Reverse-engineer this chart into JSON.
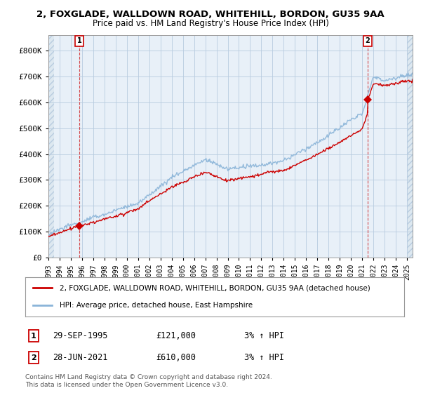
{
  "title_line1": "2, FOXGLADE, WALLDOWN ROAD, WHITEHILL, BORDON, GU35 9AA",
  "title_line2": "Price paid vs. HM Land Registry's House Price Index (HPI)",
  "xlim_start": 1993.0,
  "xlim_end": 2025.5,
  "ylim_min": 0,
  "ylim_max": 860000,
  "yticks": [
    0,
    100000,
    200000,
    300000,
    400000,
    500000,
    600000,
    700000,
    800000
  ],
  "ytick_labels": [
    "£0",
    "£100K",
    "£200K",
    "£300K",
    "£400K",
    "£500K",
    "£600K",
    "£700K",
    "£800K"
  ],
  "xticks": [
    1993,
    1994,
    1995,
    1996,
    1997,
    1998,
    1999,
    2000,
    2001,
    2002,
    2003,
    2004,
    2005,
    2006,
    2007,
    2008,
    2009,
    2010,
    2011,
    2012,
    2013,
    2014,
    2015,
    2016,
    2017,
    2018,
    2019,
    2020,
    2021,
    2022,
    2023,
    2024,
    2025
  ],
  "transaction1_x": 1995.75,
  "transaction1_y": 121000,
  "transaction1_label": "1",
  "transaction1_date": "29-SEP-1995",
  "transaction1_price": "£121,000",
  "transaction1_hpi": "3% ↑ HPI",
  "transaction2_x": 2021.5,
  "transaction2_y": 610000,
  "transaction2_label": "2",
  "transaction2_date": "28-JUN-2021",
  "transaction2_price": "£610,000",
  "transaction2_hpi": "3% ↑ HPI",
  "line_color_hpi": "#8ab4d8",
  "line_color_price": "#cc0000",
  "marker_color": "#cc0000",
  "background_color": "#ffffff",
  "grid_color_major": "#c8d8e8",
  "grid_color_minor": "#dde8f0",
  "hatch_color": "#c8d8e8",
  "legend_label1": "2, FOXGLADE, WALLDOWN ROAD, WHITEHILL, BORDON, GU35 9AA (detached house)",
  "legend_label2": "HPI: Average price, detached house, East Hampshire",
  "footer1": "Contains HM Land Registry data © Crown copyright and database right 2024.",
  "footer2": "This data is licensed under the Open Government Licence v3.0."
}
